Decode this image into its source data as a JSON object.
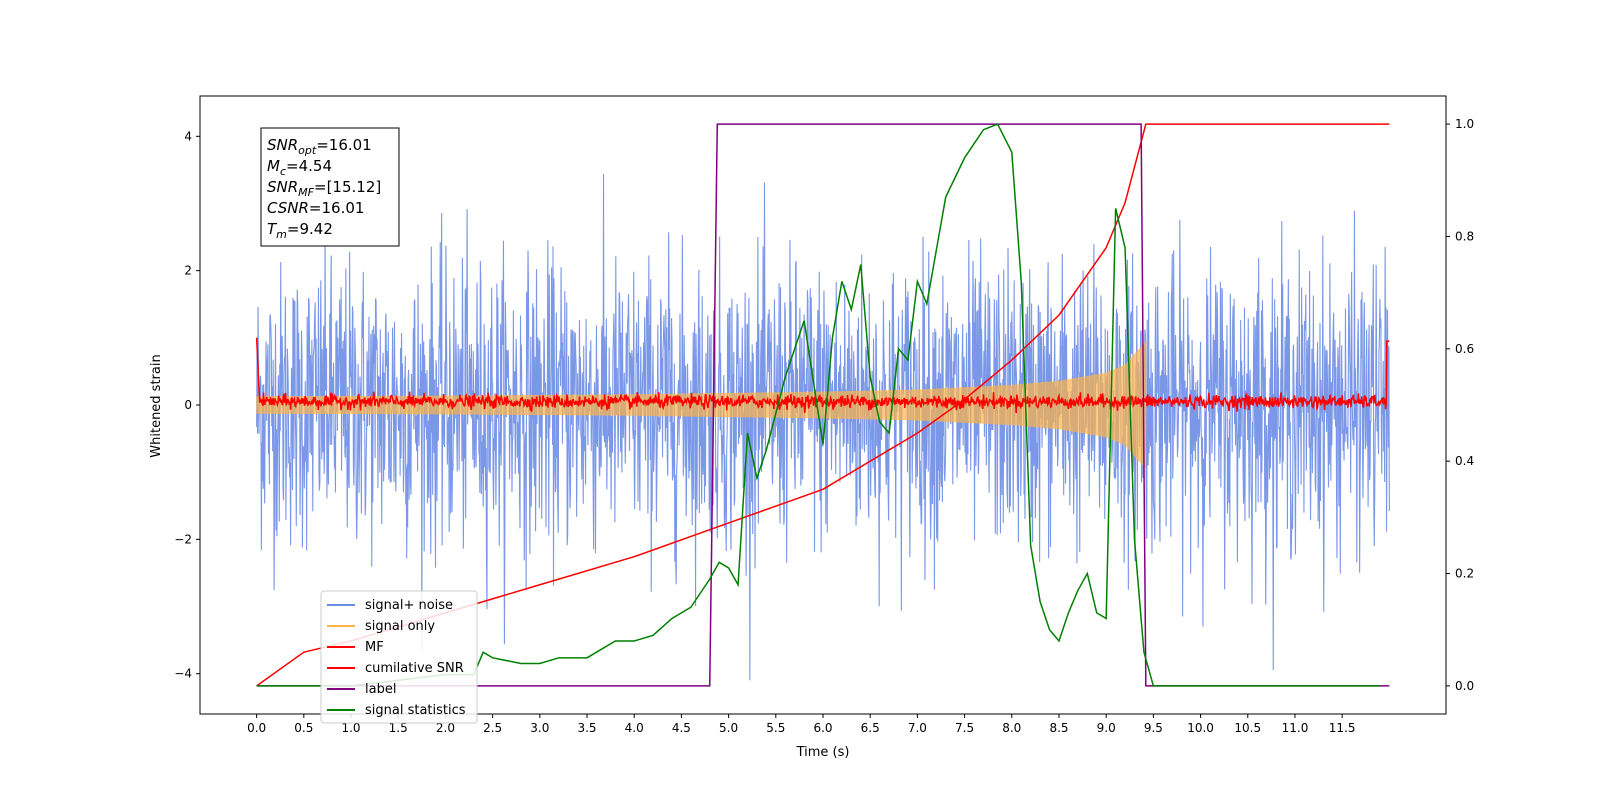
{
  "chart_data": {
    "type": "line",
    "xlabel": "Time (s)",
    "ylabel": "Whitened strain",
    "xlim": [
      -0.6,
      12.6
    ],
    "ylim": [
      -4.6,
      4.6
    ],
    "y2lim": [
      -0.05,
      1.05
    ],
    "grid": false,
    "legend_position": "lower-left",
    "x_ticks": [
      0.0,
      0.5,
      1.0,
      1.5,
      2.0,
      2.5,
      3.0,
      3.5,
      4.0,
      4.5,
      5.0,
      5.5,
      6.0,
      6.5,
      7.0,
      7.5,
      8.0,
      8.5,
      9.0,
      9.5,
      10.0,
      10.5,
      11.0,
      11.5
    ],
    "x_tick_labels": [
      "0.0",
      "0.5",
      "1.0",
      "1.5",
      "2.0",
      "2.5",
      "3.0",
      "3.5",
      "4.0",
      "4.5",
      "5.0",
      "5.5",
      "6.0",
      "6.5",
      "7.0",
      "7.5",
      "8.0",
      "8.5",
      "9.0",
      "9.5",
      "10.0",
      "10.5",
      "11.0",
      "11.5"
    ],
    "y_ticks": [
      -4,
      -2,
      0,
      2,
      4
    ],
    "y_tick_labels": [
      "−4",
      "−2",
      "0",
      "2",
      "4"
    ],
    "y2_ticks": [
      0.0,
      0.2,
      0.4,
      0.6,
      0.8,
      1.0
    ],
    "y2_tick_labels": [
      "0.0",
      "0.2",
      "0.4",
      "0.6",
      "0.8",
      "1.0"
    ],
    "annotation": {
      "lines": [
        {
          "sym": "SNR",
          "sub": "opt",
          "val": "=16.01"
        },
        {
          "sym": "M",
          "sub": "c",
          "val": "=4.54"
        },
        {
          "sym": "SNR",
          "sub": "MF",
          "val": "=[15.12]"
        },
        {
          "sym": "CSNR",
          "sub": "",
          "val": "=16.01"
        },
        {
          "sym": "T",
          "sub": "m",
          "val": "=9.42"
        }
      ]
    },
    "series": [
      {
        "name": "signal+ noise",
        "axis": "left",
        "color": "#6b8ce5",
        "description_range": [
          0.0,
          12.0
        ],
        "amplitude_approx": 3.0
      },
      {
        "name": "signal only",
        "axis": "left",
        "color": "#ffb347",
        "envelope": {
          "x": [
            0.0,
            2.0,
            4.0,
            6.0,
            7.0,
            8.0,
            8.5,
            9.0,
            9.2,
            9.42
          ],
          "amp": [
            0.13,
            0.14,
            0.16,
            0.2,
            0.23,
            0.3,
            0.36,
            0.48,
            0.6,
            0.95
          ]
        }
      },
      {
        "name": "MF",
        "axis": "left",
        "color": "#ff0000",
        "range": [
          0.0,
          12.0
        ],
        "level_approx": 0.05
      },
      {
        "name": "cumilative SNR",
        "axis": "right",
        "color": "#ff0000",
        "x": [
          0.0,
          0.5,
          1.0,
          2.0,
          3.0,
          4.0,
          5.0,
          6.0,
          7.0,
          7.5,
          8.0,
          8.5,
          9.0,
          9.2,
          9.42,
          12.0
        ],
        "y": [
          0.0,
          0.06,
          0.08,
          0.13,
          0.18,
          0.23,
          0.29,
          0.35,
          0.45,
          0.51,
          0.58,
          0.66,
          0.78,
          0.86,
          1.0,
          1.0
        ]
      },
      {
        "name": "label",
        "axis": "right",
        "color": "#800080",
        "x": [
          0.0,
          4.8,
          4.88,
          9.37,
          9.42,
          12.0
        ],
        "y": [
          0.0,
          0.0,
          1.0,
          1.0,
          0.0,
          0.0
        ]
      },
      {
        "name": "signal statistics",
        "axis": "right",
        "color": "#008000",
        "x": [
          0.0,
          1.0,
          1.5,
          2.0,
          2.3,
          2.4,
          2.5,
          2.8,
          3.0,
          3.2,
          3.5,
          3.8,
          4.0,
          4.2,
          4.4,
          4.6,
          4.8,
          4.9,
          5.0,
          5.1,
          5.2,
          5.3,
          5.4,
          5.6,
          5.8,
          6.0,
          6.1,
          6.2,
          6.3,
          6.4,
          6.5,
          6.6,
          6.7,
          6.8,
          6.9,
          7.0,
          7.1,
          7.3,
          7.5,
          7.7,
          7.85,
          8.0,
          8.1,
          8.2,
          8.3,
          8.4,
          8.5,
          8.6,
          8.7,
          8.8,
          8.9,
          9.0,
          9.1,
          9.2,
          9.3,
          9.4,
          9.5,
          10.0,
          11.0,
          11.9
        ],
        "y": [
          0.0,
          0.0,
          0.01,
          0.02,
          0.02,
          0.06,
          0.05,
          0.04,
          0.04,
          0.05,
          0.05,
          0.08,
          0.08,
          0.09,
          0.12,
          0.14,
          0.19,
          0.22,
          0.21,
          0.18,
          0.45,
          0.37,
          0.42,
          0.55,
          0.65,
          0.43,
          0.62,
          0.72,
          0.67,
          0.75,
          0.55,
          0.47,
          0.45,
          0.6,
          0.58,
          0.72,
          0.68,
          0.87,
          0.94,
          0.99,
          1.0,
          0.95,
          0.72,
          0.25,
          0.15,
          0.1,
          0.08,
          0.13,
          0.17,
          0.2,
          0.13,
          0.12,
          0.85,
          0.78,
          0.26,
          0.06,
          0.0,
          0.0,
          0.0,
          0.0
        ]
      }
    ]
  }
}
